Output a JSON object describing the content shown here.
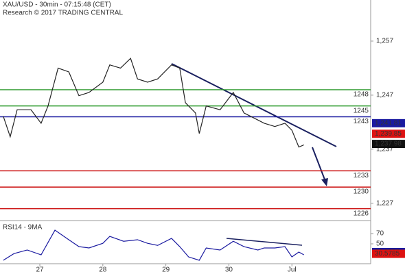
{
  "chart_data": [
    {
      "type": "line",
      "title": "XAU/USD - 30min - 07:15:48 (CET)",
      "subtitle": "Research © 2017 TRADING CENTRAL",
      "xlim": [
        -0.632,
        5.25
      ],
      "xticks": [
        {
          "value": 0,
          "label": "27"
        },
        {
          "value": 1,
          "label": "28"
        },
        {
          "value": 2,
          "label": "29"
        },
        {
          "value": 3,
          "label": "30"
        },
        {
          "value": 4,
          "label": "Jul"
        }
      ],
      "ylim": [
        1223.8,
        1264.6
      ],
      "yticks": [
        {
          "value": 1257,
          "label": "1,257"
        },
        {
          "value": 1247,
          "label": "1,247"
        },
        {
          "value": 1237,
          "label": "1,237"
        },
        {
          "value": 1227,
          "label": "1,227"
        }
      ],
      "x": [
        -0.58,
        -0.47,
        -0.36,
        -0.14,
        0.02,
        0.13,
        0.29,
        0.46,
        0.62,
        0.78,
        1.0,
        1.11,
        1.28,
        1.44,
        1.55,
        1.71,
        1.87,
        2.09,
        2.22,
        2.31,
        2.47,
        2.53,
        2.64,
        2.86,
        3.07,
        3.24,
        3.46,
        3.56,
        3.73,
        3.89,
        4.0,
        4.11,
        4.19
      ],
      "series": [
        {
          "color": "#222222",
          "values": [
            1243.1,
            1239.3,
            1244.3,
            1244.3,
            1241.8,
            1245,
            1252,
            1251.3,
            1246.9,
            1247.5,
            1249.4,
            1252.6,
            1252,
            1253.8,
            1250,
            1249.4,
            1250,
            1252.6,
            1252,
            1245.6,
            1243.7,
            1239.9,
            1245,
            1244.3,
            1247.5,
            1243.7,
            1242.4,
            1241.8,
            1241.2,
            1241.8,
            1240.5,
            1237.4,
            1237.8
          ]
        }
      ],
      "levels": [
        {
          "value": 1248,
          "color": "#2e9a2e"
        },
        {
          "value": 1245,
          "color": "#2e9a2e"
        },
        {
          "value": 1243,
          "color": "#1a1aa0"
        },
        {
          "value": 1233,
          "color": "#cc1111"
        },
        {
          "value": 1230,
          "color": "#cc1111"
        },
        {
          "value": 1226,
          "color": "#cc1111"
        }
      ],
      "markers": [
        {
          "value": 1241.81,
          "label": "1,241.81",
          "color": "#1a1aa0"
        },
        {
          "value": 1239.85,
          "label": "1,239.85",
          "color": "#dd1111"
        },
        {
          "value": 1237.98,
          "label": "1,237.98",
          "color": "#111111"
        }
      ]
    },
    {
      "type": "line",
      "title": "RSI14 - 9MA",
      "xlim": [
        -0.632,
        5.25
      ],
      "ylim": [
        11.3,
        91.3
      ],
      "yticks": [
        70,
        50
      ],
      "x": [
        -0.58,
        -0.41,
        -0.2,
        0.02,
        0.24,
        0.46,
        0.62,
        0.78,
        1.0,
        1.11,
        1.33,
        1.55,
        1.71,
        1.87,
        2.09,
        2.22,
        2.36,
        2.53,
        2.64,
        2.86,
        3.07,
        3.24,
        3.46,
        3.56,
        3.73,
        3.89,
        4.0,
        4.11,
        4.19
      ],
      "series": [
        {
          "color": "#1a1aa0",
          "values": [
            18,
            31,
            38,
            28.6,
            76.6,
            58,
            44.6,
            42,
            51,
            64.6,
            55,
            58,
            51,
            47,
            60.6,
            44.6,
            24.6,
            18,
            42,
            38,
            55,
            44.6,
            38,
            42,
            42,
            44.6,
            24.6,
            34,
            28.6
          ]
        }
      ],
      "markers": [
        {
          "value": 33.9558,
          "label": "33.9558",
          "color": "#1a1aa0"
        },
        {
          "value": 30.5785,
          "label": "30.5785",
          "color": "#dd1111"
        }
      ]
    }
  ]
}
